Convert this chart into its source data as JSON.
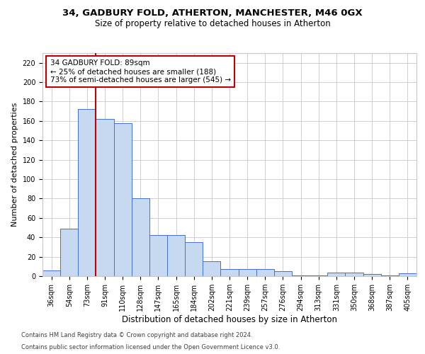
{
  "title_line1": "34, GADBURY FOLD, ATHERTON, MANCHESTER, M46 0GX",
  "title_line2": "Size of property relative to detached houses in Atherton",
  "xlabel": "Distribution of detached houses by size in Atherton",
  "ylabel": "Number of detached properties",
  "categories": [
    "36sqm",
    "54sqm",
    "73sqm",
    "91sqm",
    "110sqm",
    "128sqm",
    "147sqm",
    "165sqm",
    "184sqm",
    "202sqm",
    "221sqm",
    "239sqm",
    "257sqm",
    "276sqm",
    "294sqm",
    "313sqm",
    "331sqm",
    "350sqm",
    "368sqm",
    "387sqm",
    "405sqm"
  ],
  "values": [
    6,
    49,
    172,
    162,
    158,
    80,
    42,
    42,
    35,
    15,
    7,
    7,
    7,
    5,
    1,
    1,
    4,
    4,
    2,
    1,
    3
  ],
  "bar_color": "#c6d9f1",
  "bar_edge_color": "#4472c4",
  "vline_color": "#c00000",
  "annotation_text": "34 GADBURY FOLD: 89sqm\n← 25% of detached houses are smaller (188)\n73% of semi-detached houses are larger (545) →",
  "annotation_box_color": "#ffffff",
  "annotation_box_edge": "#c00000",
  "ylim": [
    0,
    230
  ],
  "yticks": [
    0,
    20,
    40,
    60,
    80,
    100,
    120,
    140,
    160,
    180,
    200,
    220
  ],
  "footnote_line1": "Contains HM Land Registry data © Crown copyright and database right 2024.",
  "footnote_line2": "Contains public sector information licensed under the Open Government Licence v3.0.",
  "bg_color": "#ffffff",
  "grid_color": "#c8c8c8",
  "title1_fontsize": 9.5,
  "title2_fontsize": 8.5,
  "ylabel_fontsize": 8,
  "xlabel_fontsize": 8.5,
  "tick_fontsize": 7,
  "annot_fontsize": 7.5,
  "footnote_fontsize": 6
}
